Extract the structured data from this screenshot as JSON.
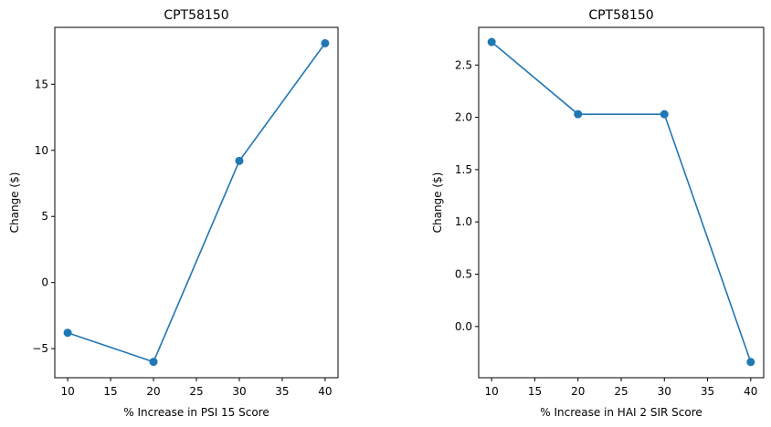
{
  "chart_data": [
    {
      "type": "line",
      "title": "CPT58150",
      "xlabel": "% Increase in PSI 15 Score",
      "ylabel": "Change ($)",
      "x": [
        10,
        20,
        30,
        40
      ],
      "series": [
        {
          "values": [
            -3.8,
            -6.0,
            9.2,
            18.1
          ],
          "color": "#1f77b4"
        }
      ],
      "xlim": [
        8.5,
        41.5
      ],
      "ylim": [
        -7.2,
        19.3
      ],
      "xticks": [
        10,
        15,
        20,
        25,
        30,
        35,
        40
      ],
      "xtick_labels": [
        "10",
        "15",
        "20",
        "25",
        "30",
        "35",
        "40"
      ],
      "yticks": [
        -5,
        0,
        5,
        10,
        15
      ],
      "ytick_labels": [
        "−5",
        "0",
        "5",
        "10",
        "15"
      ],
      "grid": false,
      "markers": true
    },
    {
      "type": "line",
      "title": "CPT58150",
      "xlabel": "% Increase in HAI 2 SIR Score",
      "ylabel": "Change ($)",
      "x": [
        10,
        20,
        30,
        40
      ],
      "series": [
        {
          "values": [
            2.72,
            2.03,
            2.03,
            -0.34
          ],
          "color": "#1f77b4"
        }
      ],
      "xlim": [
        8.5,
        41.5
      ],
      "ylim": [
        -0.49,
        2.86
      ],
      "xticks": [
        10,
        15,
        20,
        25,
        30,
        35,
        40
      ],
      "xtick_labels": [
        "10",
        "15",
        "20",
        "25",
        "30",
        "35",
        "40"
      ],
      "yticks": [
        0.0,
        0.5,
        1.0,
        1.5,
        2.0,
        2.5
      ],
      "ytick_labels": [
        "0.0",
        "0.5",
        "1.0",
        "1.5",
        "2.0",
        "2.5"
      ],
      "grid": false,
      "markers": true
    }
  ]
}
